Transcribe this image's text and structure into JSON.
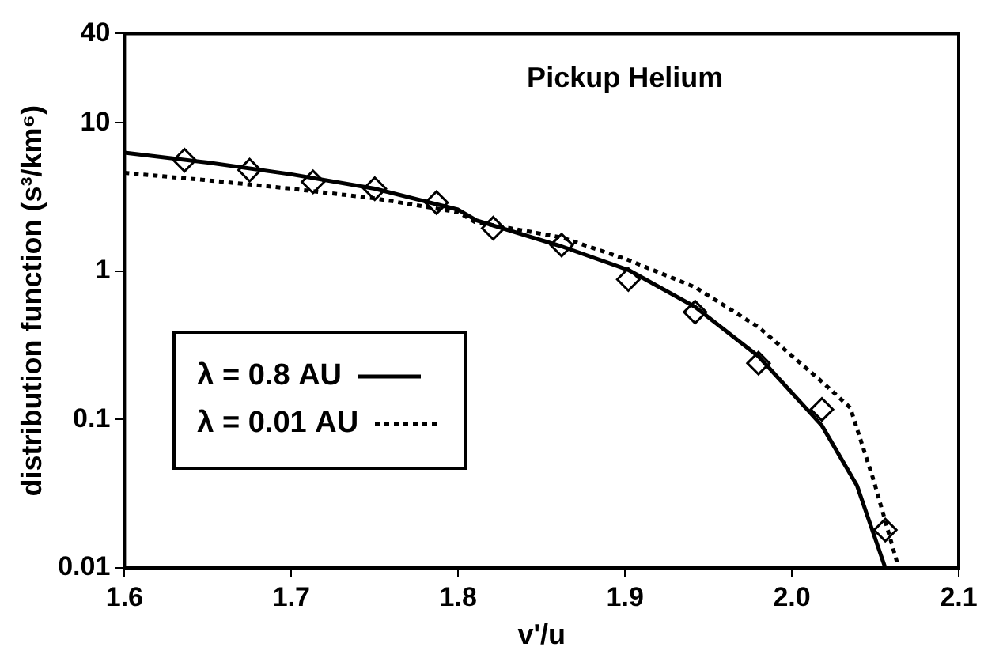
{
  "chart_data": {
    "type": "line",
    "xlabel": "v'/u",
    "ylabel": "distribution function (s³/km⁶)",
    "annotations": [
      "Pickup Helium"
    ],
    "xlim": [
      1.6,
      2.1
    ],
    "xticks": [
      1.6,
      1.7,
      1.8,
      1.9,
      {
        "value": 2,
        "label": "2.0"
      },
      2.1
    ],
    "ylim": [
      0.01,
      40
    ],
    "yticks": [
      0.01,
      0.1,
      1,
      10,
      40
    ],
    "log": "y",
    "grid": false,
    "legend": "bottom left",
    "series": [
      {
        "name": "λ = 0.8 AU",
        "color": "#000000",
        "line_style": "solid",
        "marker": "none",
        "x": [
          1.6,
          1.65,
          1.7,
          1.75,
          1.8,
          1.811,
          1.862,
          1.902,
          1.942,
          1.98,
          2.018,
          2.039,
          2.056
        ],
        "values": [
          6.3,
          5.4,
          4.5,
          3.6,
          2.6,
          2.2,
          1.47,
          1.02,
          0.575,
          0.267,
          0.091,
          0.036,
          0.01
        ]
      },
      {
        "name": "λ = 0.01 AU",
        "color": "#000000",
        "line_style": "dotted",
        "marker": "none",
        "x": [
          1.6,
          1.65,
          1.7,
          1.75,
          1.8,
          1.81,
          1.862,
          1.902,
          1.942,
          1.98,
          2.018,
          2.035,
          2.049,
          2.064
        ],
        "values": [
          4.6,
          4.1,
          3.6,
          3.1,
          2.5,
          2.15,
          1.69,
          1.19,
          0.78,
          0.42,
          0.18,
          0.12,
          0.039,
          0.01
        ]
      },
      {
        "type": "scatter",
        "color": "#000000",
        "marker": "diamond",
        "x": [
          1.636,
          1.675,
          1.713,
          1.75,
          1.787,
          1.821,
          1.862,
          1.902,
          1.942,
          1.98,
          2.018,
          2.056
        ],
        "values": [
          5.6,
          4.8,
          4.0,
          3.6,
          2.9,
          1.95,
          1.5,
          0.88,
          0.53,
          0.24,
          0.117,
          0.018
        ]
      }
    ]
  }
}
